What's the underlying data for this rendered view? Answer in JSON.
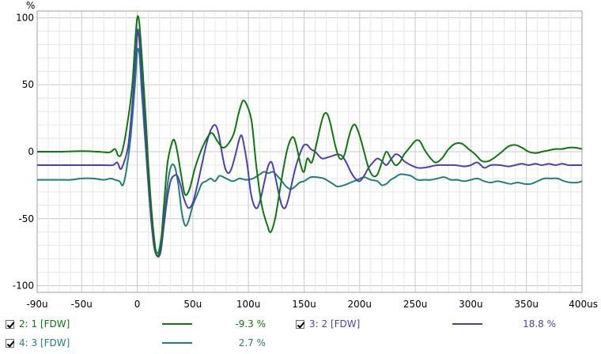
{
  "chart_data": {
    "type": "line",
    "y_unit": "%",
    "xlim": [
      -90,
      400
    ],
    "ylim": [
      -105,
      105
    ],
    "x_ticks": [
      {
        "v": -90,
        "label": "-90u"
      },
      {
        "v": -50,
        "label": "-50u"
      },
      {
        "v": 0,
        "label": "0"
      },
      {
        "v": 50,
        "label": "50u"
      },
      {
        "v": 100,
        "label": "100u"
      },
      {
        "v": 150,
        "label": "150u"
      },
      {
        "v": 200,
        "label": "200u"
      },
      {
        "v": 250,
        "label": "250u"
      },
      {
        "v": 300,
        "label": "300u"
      },
      {
        "v": 350,
        "label": "350u"
      },
      {
        "v": 400,
        "label": "400us"
      }
    ],
    "y_ticks": [
      {
        "v": 100,
        "label": "100"
      },
      {
        "v": 50,
        "label": "50"
      },
      {
        "v": 0,
        "label": "0"
      },
      {
        "v": -50,
        "label": "-50"
      },
      {
        "v": -100,
        "label": "-100"
      }
    ],
    "grid": true,
    "series": [
      {
        "name": "2: 1 [FDW]",
        "color": "#0a7a0a",
        "value_text": "-9.3 %",
        "points": [
          [
            -90,
            0
          ],
          [
            -70,
            0
          ],
          [
            -50,
            0.5
          ],
          [
            -35,
            0
          ],
          [
            -25,
            -0.5
          ],
          [
            -20,
            2
          ],
          [
            -17,
            -3
          ],
          [
            -14,
            -1
          ],
          [
            -10,
            15
          ],
          [
            -5,
            45
          ],
          [
            -2,
            80
          ],
          [
            0,
            100
          ],
          [
            2,
            95
          ],
          [
            5,
            60
          ],
          [
            8,
            20
          ],
          [
            10,
            -10
          ],
          [
            13,
            -45
          ],
          [
            16,
            -70
          ],
          [
            18,
            -78
          ],
          [
            21,
            -70
          ],
          [
            24,
            -40
          ],
          [
            27,
            -10
          ],
          [
            30,
            3
          ],
          [
            33,
            9
          ],
          [
            36,
            0
          ],
          [
            40,
            -20
          ],
          [
            43,
            -32
          ],
          [
            47,
            -28
          ],
          [
            52,
            -12
          ],
          [
            57,
            0
          ],
          [
            62,
            9
          ],
          [
            67,
            14
          ],
          [
            72,
            8
          ],
          [
            77,
            3
          ],
          [
            82,
            6
          ],
          [
            87,
            14
          ],
          [
            91,
            28
          ],
          [
            95,
            38
          ],
          [
            99,
            34
          ],
          [
            103,
            22
          ],
          [
            107,
            -10
          ],
          [
            112,
            -40
          ],
          [
            117,
            -55
          ],
          [
            120,
            -60
          ],
          [
            124,
            -50
          ],
          [
            128,
            -30
          ],
          [
            132,
            -10
          ],
          [
            136,
            5
          ],
          [
            140,
            11
          ],
          [
            143,
            5
          ],
          [
            147,
            -10
          ],
          [
            150,
            -15
          ],
          [
            153,
            -5
          ],
          [
            157,
            -8
          ],
          [
            161,
            5
          ],
          [
            165,
            20
          ],
          [
            168,
            28
          ],
          [
            171,
            28
          ],
          [
            174,
            20
          ],
          [
            178,
            5
          ],
          [
            182,
            -5
          ],
          [
            186,
            -3
          ],
          [
            190,
            10
          ],
          [
            193,
            18
          ],
          [
            196,
            20
          ],
          [
            200,
            12
          ],
          [
            204,
            0
          ],
          [
            208,
            -12
          ],
          [
            212,
            -18
          ],
          [
            216,
            -17
          ],
          [
            220,
            -8
          ],
          [
            224,
            0
          ],
          [
            228,
            -5
          ],
          [
            232,
            -10
          ],
          [
            236,
            -8
          ],
          [
            240,
            -2
          ],
          [
            244,
            2
          ],
          [
            250,
            8
          ],
          [
            254,
            8
          ],
          [
            258,
            2
          ],
          [
            262,
            -3
          ],
          [
            268,
            -8
          ],
          [
            274,
            -5
          ],
          [
            280,
            2
          ],
          [
            286,
            6
          ],
          [
            292,
            6
          ],
          [
            298,
            2
          ],
          [
            304,
            -2
          ],
          [
            310,
            -7
          ],
          [
            316,
            -7
          ],
          [
            322,
            -4
          ],
          [
            328,
            0
          ],
          [
            334,
            4
          ],
          [
            340,
            5
          ],
          [
            346,
            3
          ],
          [
            352,
            0
          ],
          [
            358,
            -1
          ],
          [
            364,
            0
          ],
          [
            370,
            1
          ],
          [
            376,
            2
          ],
          [
            382,
            2
          ],
          [
            388,
            3
          ],
          [
            394,
            3
          ],
          [
            400,
            2
          ]
        ]
      },
      {
        "name": "3: 2 [FDW]",
        "color": "#4a3fb8",
        "value_text": "18.8 %",
        "points": [
          [
            -90,
            -10
          ],
          [
            -80,
            -10
          ],
          [
            -70,
            -10
          ],
          [
            -60,
            -10
          ],
          [
            -50,
            -10
          ],
          [
            -40,
            -10
          ],
          [
            -30,
            -10
          ],
          [
            -22,
            -10
          ],
          [
            -18,
            -8
          ],
          [
            -15,
            -13
          ],
          [
            -12,
            -8
          ],
          [
            -8,
            5
          ],
          [
            -4,
            40
          ],
          [
            -1,
            75
          ],
          [
            0,
            88
          ],
          [
            1,
            90
          ],
          [
            3,
            70
          ],
          [
            6,
            30
          ],
          [
            9,
            -10
          ],
          [
            12,
            -45
          ],
          [
            15,
            -70
          ],
          [
            18,
            -78
          ],
          [
            21,
            -75
          ],
          [
            24,
            -55
          ],
          [
            27,
            -35
          ],
          [
            30,
            -22
          ],
          [
            33,
            -18
          ],
          [
            36,
            -18
          ],
          [
            39,
            -25
          ],
          [
            42,
            -35
          ],
          [
            46,
            -42
          ],
          [
            50,
            -38
          ],
          [
            54,
            -25
          ],
          [
            58,
            -10
          ],
          [
            62,
            5
          ],
          [
            66,
            16
          ],
          [
            70,
            20
          ],
          [
            73,
            14
          ],
          [
            76,
            0
          ],
          [
            79,
            -12
          ],
          [
            82,
            -16
          ],
          [
            85,
            -12
          ],
          [
            89,
            0
          ],
          [
            92,
            10
          ],
          [
            94,
            12
          ],
          [
            96,
            5
          ],
          [
            99,
            -10
          ],
          [
            102,
            -30
          ],
          [
            105,
            -40
          ],
          [
            108,
            -42
          ],
          [
            111,
            -35
          ],
          [
            115,
            -20
          ],
          [
            118,
            -10
          ],
          [
            121,
            -8
          ],
          [
            124,
            -18
          ],
          [
            127,
            -30
          ],
          [
            130,
            -40
          ],
          [
            133,
            -42
          ],
          [
            136,
            -35
          ],
          [
            140,
            -20
          ],
          [
            143,
            -10
          ],
          [
            147,
            0
          ],
          [
            150,
            5
          ],
          [
            153,
            5
          ],
          [
            156,
            2
          ],
          [
            160,
            0
          ],
          [
            166,
            -5
          ],
          [
            172,
            -4
          ],
          [
            176,
            -3
          ],
          [
            180,
            -2
          ],
          [
            184,
            -3
          ],
          [
            188,
            -8
          ],
          [
            192,
            -15
          ],
          [
            196,
            -20
          ],
          [
            200,
            -22
          ],
          [
            204,
            -18
          ],
          [
            208,
            -12
          ],
          [
            212,
            -8
          ],
          [
            216,
            -5
          ],
          [
            220,
            -7
          ],
          [
            224,
            -10
          ],
          [
            228,
            -6
          ],
          [
            232,
            -2
          ],
          [
            236,
            -3
          ],
          [
            240,
            -7
          ],
          [
            246,
            -10
          ],
          [
            252,
            -12
          ],
          [
            258,
            -12
          ],
          [
            264,
            -11
          ],
          [
            270,
            -10
          ],
          [
            278,
            -10
          ],
          [
            286,
            -10
          ],
          [
            294,
            -11
          ],
          [
            300,
            -10
          ],
          [
            306,
            -8
          ],
          [
            312,
            -12
          ],
          [
            318,
            -10
          ],
          [
            326,
            -10
          ],
          [
            334,
            -11
          ],
          [
            340,
            -10
          ],
          [
            346,
            -9
          ],
          [
            352,
            -10
          ],
          [
            358,
            -9
          ],
          [
            364,
            -10
          ],
          [
            370,
            -9
          ],
          [
            376,
            -10
          ],
          [
            382,
            -9
          ],
          [
            388,
            -10
          ],
          [
            394,
            -10
          ],
          [
            400,
            -10
          ]
        ]
      },
      {
        "name": "4: 3 [FDW]",
        "color": "#1e8080",
        "value_text": "2.7 %",
        "points": [
          [
            -90,
            -21
          ],
          [
            -70,
            -21
          ],
          [
            -60,
            -21
          ],
          [
            -50,
            -20
          ],
          [
            -40,
            -20
          ],
          [
            -30,
            -21
          ],
          [
            -24,
            -20
          ],
          [
            -20,
            -21
          ],
          [
            -16,
            -22
          ],
          [
            -13,
            -25
          ],
          [
            -10,
            -15
          ],
          [
            -6,
            10
          ],
          [
            -2,
            50
          ],
          [
            0,
            75
          ],
          [
            2,
            72
          ],
          [
            4,
            45
          ],
          [
            7,
            10
          ],
          [
            10,
            -25
          ],
          [
            13,
            -55
          ],
          [
            16,
            -72
          ],
          [
            19,
            -75
          ],
          [
            22,
            -62
          ],
          [
            25,
            -42
          ],
          [
            28,
            -20
          ],
          [
            31,
            -10
          ],
          [
            34,
            -12
          ],
          [
            37,
            -25
          ],
          [
            40,
            -45
          ],
          [
            43,
            -55
          ],
          [
            46,
            -52
          ],
          [
            50,
            -40
          ],
          [
            54,
            -32
          ],
          [
            58,
            -24
          ],
          [
            62,
            -22
          ],
          [
            66,
            -20
          ],
          [
            70,
            -22
          ],
          [
            74,
            -18
          ],
          [
            80,
            -20
          ],
          [
            86,
            -22
          ],
          [
            92,
            -20
          ],
          [
            98,
            -21
          ],
          [
            104,
            -20
          ],
          [
            110,
            -17
          ],
          [
            114,
            -15
          ],
          [
            118,
            -16
          ],
          [
            122,
            -15
          ],
          [
            126,
            -18
          ],
          [
            130,
            -22
          ],
          [
            134,
            -26
          ],
          [
            138,
            -28
          ],
          [
            142,
            -26
          ],
          [
            146,
            -23
          ],
          [
            150,
            -22
          ],
          [
            156,
            -19
          ],
          [
            162,
            -19
          ],
          [
            168,
            -20
          ],
          [
            172,
            -22
          ],
          [
            176,
            -24
          ],
          [
            180,
            -26
          ],
          [
            186,
            -25
          ],
          [
            192,
            -23
          ],
          [
            198,
            -21
          ],
          [
            204,
            -19
          ],
          [
            210,
            -21
          ],
          [
            216,
            -22
          ],
          [
            220,
            -25
          ],
          [
            224,
            -24
          ],
          [
            228,
            -21
          ],
          [
            232,
            -19
          ],
          [
            236,
            -17
          ],
          [
            240,
            -17
          ],
          [
            246,
            -18
          ],
          [
            252,
            -21
          ],
          [
            258,
            -21
          ],
          [
            264,
            -21
          ],
          [
            270,
            -20
          ],
          [
            276,
            -19
          ],
          [
            282,
            -21
          ],
          [
            288,
            -21
          ],
          [
            294,
            -22
          ],
          [
            300,
            -21
          ],
          [
            306,
            -20
          ],
          [
            312,
            -22
          ],
          [
            318,
            -23
          ],
          [
            324,
            -22
          ],
          [
            330,
            -23
          ],
          [
            336,
            -24
          ],
          [
            342,
            -23
          ],
          [
            348,
            -24
          ],
          [
            354,
            -24
          ],
          [
            360,
            -22
          ],
          [
            366,
            -20
          ],
          [
            372,
            -20
          ],
          [
            378,
            -20
          ],
          [
            384,
            -22
          ],
          [
            390,
            -23
          ],
          [
            396,
            -23
          ],
          [
            400,
            -22
          ]
        ]
      }
    ]
  }
}
